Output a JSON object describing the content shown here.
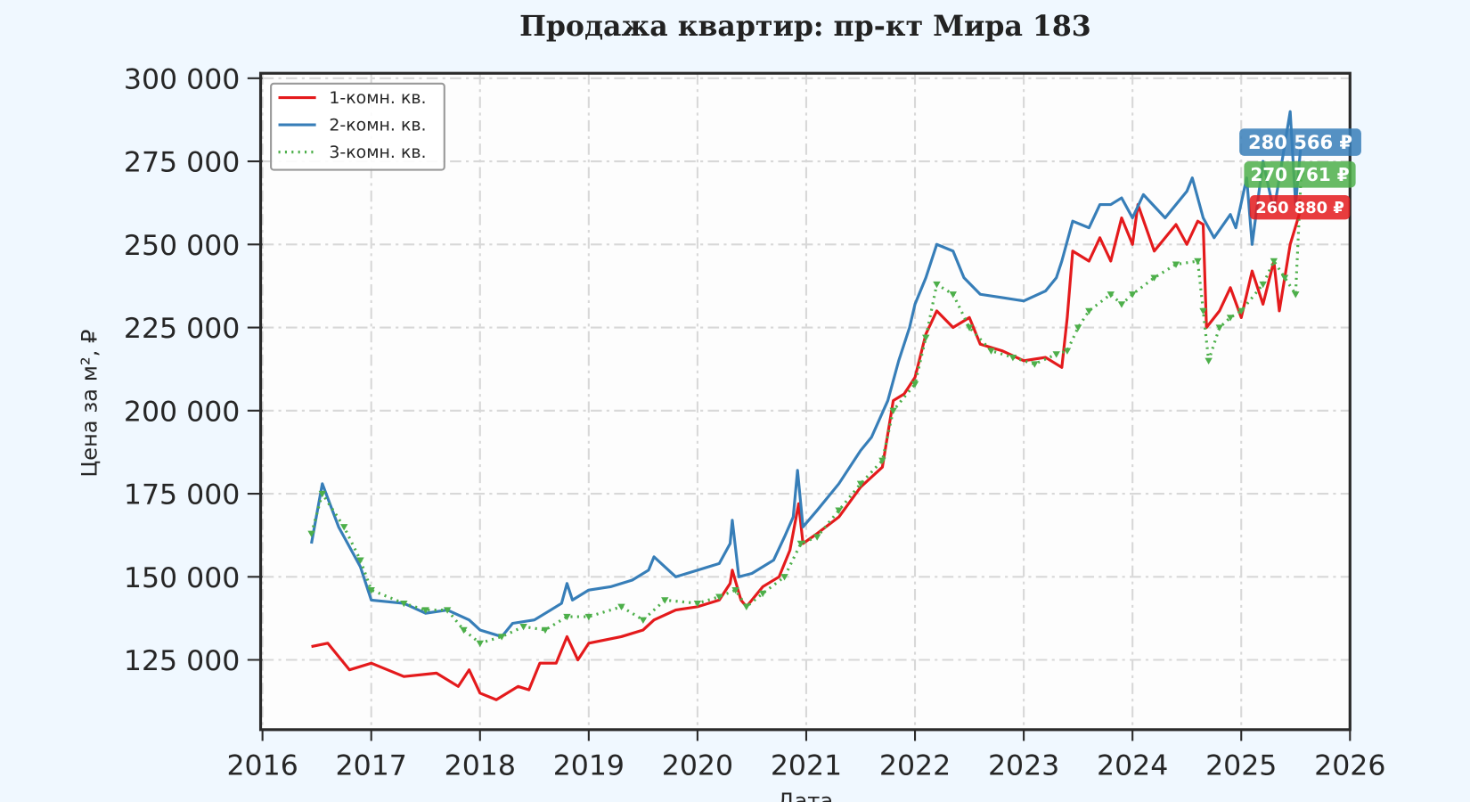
{
  "chart_data": {
    "type": "line",
    "title": "Продажа квартир: пр-кт Мира 183",
    "xlabel": "Дата",
    "ylabel": "Цена за м², ₽",
    "xlim": [
      2016,
      2026
    ],
    "ylim": [
      104000,
      301500
    ],
    "x_ticks": [
      "2016",
      "2017",
      "2018",
      "2019",
      "2020",
      "2021",
      "2022",
      "2023",
      "2024",
      "2025",
      "2026"
    ],
    "y_ticks": [
      125000,
      150000,
      175000,
      200000,
      225000,
      250000,
      275000,
      300000
    ],
    "y_tick_labels": [
      "125 000",
      "150 000",
      "175 000",
      "200 000",
      "225 000",
      "250 000",
      "275 000",
      "300 000"
    ],
    "grid": true,
    "legend_position": "top-left",
    "series": [
      {
        "name": "1-комн. кв.",
        "color": "#e41a1c",
        "style": "solid",
        "last_label": "260 880 ₽",
        "x": [
          2016.45,
          2016.6,
          2016.8,
          2017.0,
          2017.3,
          2017.6,
          2017.8,
          2017.9,
          2018.0,
          2018.15,
          2018.35,
          2018.45,
          2018.55,
          2018.7,
          2018.8,
          2018.9,
          2019.0,
          2019.3,
          2019.5,
          2019.6,
          2019.8,
          2020.0,
          2020.2,
          2020.3,
          2020.32,
          2020.4,
          2020.45,
          2020.6,
          2020.75,
          2020.85,
          2020.93,
          2020.97,
          2021.1,
          2021.3,
          2021.5,
          2021.7,
          2021.8,
          2021.9,
          2022.0,
          2022.1,
          2022.2,
          2022.35,
          2022.5,
          2022.6,
          2022.8,
          2023.0,
          2023.2,
          2023.35,
          2023.4,
          2023.45,
          2023.6,
          2023.7,
          2023.8,
          2023.9,
          2024.0,
          2024.05,
          2024.2,
          2024.4,
          2024.5,
          2024.6,
          2024.65,
          2024.68,
          2024.8,
          2024.9,
          2025.0,
          2025.1,
          2025.2,
          2025.3,
          2025.35,
          2025.45,
          2025.55
        ],
        "y": [
          129000,
          130000,
          122000,
          124000,
          120000,
          121000,
          117000,
          122000,
          115000,
          113000,
          117000,
          116000,
          124000,
          124000,
          132000,
          125000,
          130000,
          132000,
          134000,
          137000,
          140000,
          141000,
          143000,
          148000,
          152000,
          143000,
          141000,
          147000,
          150000,
          158000,
          172000,
          160000,
          163000,
          168000,
          177000,
          183000,
          203000,
          205000,
          210000,
          223000,
          230000,
          225000,
          228000,
          220000,
          218000,
          215000,
          216000,
          213000,
          228000,
          248000,
          245000,
          252000,
          245000,
          258000,
          250000,
          262000,
          248000,
          256000,
          250000,
          257000,
          256000,
          225000,
          230000,
          237000,
          228000,
          242000,
          232000,
          245000,
          230000,
          250000,
          260880
        ]
      },
      {
        "name": "2-комн. кв.",
        "color": "#377eb8",
        "style": "solid",
        "last_label": "280 566 ₽",
        "x": [
          2016.45,
          2016.55,
          2016.7,
          2016.9,
          2017.0,
          2017.3,
          2017.5,
          2017.7,
          2017.9,
          2018.0,
          2018.2,
          2018.3,
          2018.5,
          2018.65,
          2018.75,
          2018.8,
          2018.85,
          2019.0,
          2019.2,
          2019.4,
          2019.55,
          2019.6,
          2019.8,
          2020.0,
          2020.2,
          2020.3,
          2020.32,
          2020.38,
          2020.5,
          2020.7,
          2020.8,
          2020.88,
          2020.92,
          2020.97,
          2021.1,
          2021.3,
          2021.5,
          2021.6,
          2021.75,
          2021.85,
          2021.95,
          2022.0,
          2022.1,
          2022.2,
          2022.35,
          2022.45,
          2022.6,
          2022.8,
          2023.0,
          2023.2,
          2023.3,
          2023.35,
          2023.45,
          2023.6,
          2023.7,
          2023.8,
          2023.9,
          2024.0,
          2024.1,
          2024.3,
          2024.5,
          2024.55,
          2024.65,
          2024.75,
          2024.9,
          2024.95,
          2025.05,
          2025.1,
          2025.2,
          2025.3,
          2025.45,
          2025.5,
          2025.55
        ],
        "y": [
          160000,
          178000,
          165000,
          153000,
          143000,
          142000,
          139000,
          140000,
          137000,
          134000,
          132000,
          136000,
          137000,
          140000,
          142000,
          148000,
          143000,
          146000,
          147000,
          149000,
          152000,
          156000,
          150000,
          152000,
          154000,
          160000,
          167000,
          150000,
          151000,
          155000,
          162000,
          168000,
          182000,
          165000,
          170000,
          178000,
          188000,
          192000,
          203000,
          215000,
          225000,
          232000,
          240000,
          250000,
          248000,
          240000,
          235000,
          234000,
          233000,
          236000,
          240000,
          245000,
          257000,
          255000,
          262000,
          262000,
          264000,
          258000,
          265000,
          258000,
          266000,
          270000,
          258000,
          252000,
          259000,
          255000,
          270000,
          250000,
          275000,
          260000,
          290000,
          262000,
          280566
        ]
      },
      {
        "name": "3-комн. кв.",
        "color": "#4daf4a",
        "style": "dotted",
        "marker": "triangle-down",
        "last_label": "270 761 ₽",
        "x": [
          2016.45,
          2016.55,
          2016.75,
          2016.9,
          2017.0,
          2017.3,
          2017.5,
          2017.7,
          2017.85,
          2018.0,
          2018.2,
          2018.4,
          2018.6,
          2018.8,
          2019.0,
          2019.3,
          2019.5,
          2019.7,
          2020.0,
          2020.2,
          2020.35,
          2020.45,
          2020.6,
          2020.8,
          2020.95,
          2021.1,
          2021.3,
          2021.5,
          2021.7,
          2021.8,
          2022.0,
          2022.1,
          2022.2,
          2022.35,
          2022.5,
          2022.7,
          2022.9,
          2023.1,
          2023.3,
          2023.4,
          2023.5,
          2023.6,
          2023.8,
          2023.9,
          2024.0,
          2024.2,
          2024.4,
          2024.6,
          2024.65,
          2024.7,
          2024.8,
          2024.9,
          2025.0,
          2025.2,
          2025.3,
          2025.4,
          2025.5,
          2025.55
        ],
        "y": [
          163000,
          175000,
          165000,
          155000,
          146000,
          142000,
          140000,
          140000,
          134000,
          130000,
          132000,
          135000,
          134000,
          138000,
          138000,
          141000,
          137000,
          143000,
          142000,
          144000,
          146000,
          141000,
          145000,
          150000,
          160000,
          162000,
          170000,
          178000,
          185000,
          200000,
          208000,
          222000,
          238000,
          235000,
          225000,
          218000,
          216000,
          214000,
          217000,
          218000,
          225000,
          230000,
          235000,
          232000,
          235000,
          240000,
          244000,
          245000,
          230000,
          215000,
          225000,
          228000,
          230000,
          238000,
          245000,
          240000,
          235000,
          270761
        ]
      }
    ]
  }
}
